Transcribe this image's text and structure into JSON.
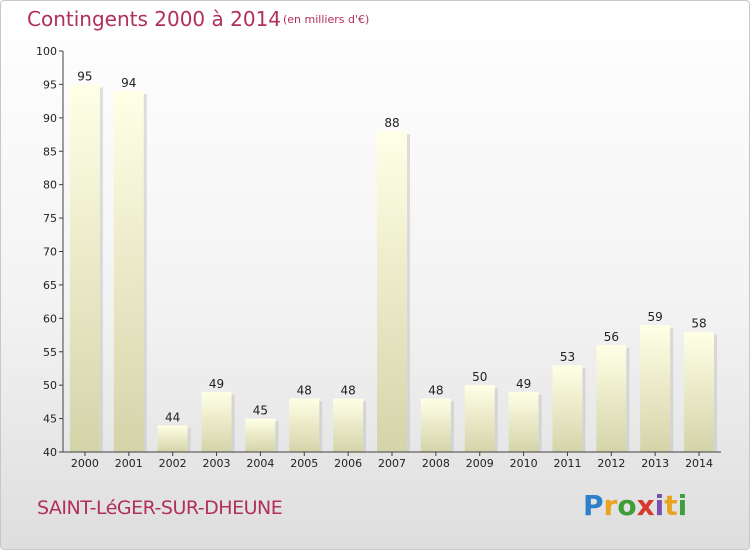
{
  "header": {
    "title": "Contingents 2000 à 2014",
    "subtitle": "(en milliers d'€)"
  },
  "footer": {
    "commune": "SAINT-LéGER-SUR-DHEUNE",
    "brand_letters": [
      "P",
      "r",
      "o",
      "x",
      "i",
      "t",
      "i"
    ],
    "brand_colors": [
      "#2e7fc9",
      "#e8a321",
      "#3f9d3a",
      "#d63a2b",
      "#7b4fb0",
      "#e8a321",
      "#3f9d3a"
    ]
  },
  "chart_data": {
    "type": "bar",
    "categories": [
      "2000",
      "2001",
      "2002",
      "2003",
      "2004",
      "2005",
      "2006",
      "2007",
      "2008",
      "2009",
      "2010",
      "2011",
      "2012",
      "2013",
      "2014"
    ],
    "values": [
      95,
      94,
      44,
      49,
      45,
      48,
      48,
      88,
      48,
      50,
      49,
      53,
      56,
      59,
      58
    ],
    "ylim": [
      40,
      100
    ],
    "yticks": [
      40,
      45,
      50,
      55,
      60,
      65,
      70,
      75,
      80,
      85,
      90,
      95,
      100
    ],
    "grid": false,
    "data_labels": true,
    "colors": {
      "bar_top": "#ffffe6",
      "bar_bottom": "#d4d4aa",
      "axis": "#404040",
      "text": "#222222"
    }
  }
}
